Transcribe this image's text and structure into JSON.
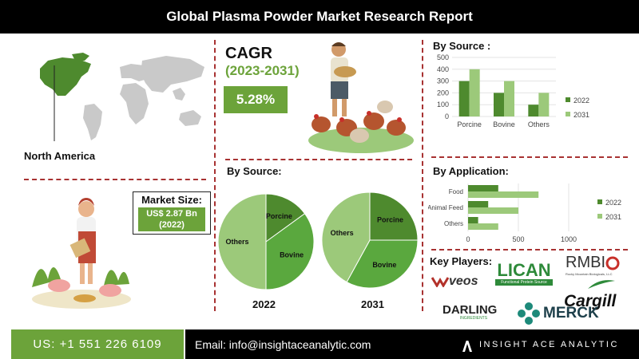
{
  "header": {
    "title": "Global Plasma Powder Market Research Report"
  },
  "region": {
    "label": "North America"
  },
  "cagr": {
    "title": "CAGR",
    "years": "(2023-2031)",
    "value": "5.28%"
  },
  "market_size": {
    "label": "Market Size:",
    "value_line1": "US$ 2.87 Bn",
    "value_line2": "(2022)"
  },
  "source_pies": {
    "heading": "By Source:",
    "year1": "2022",
    "year2": "2031"
  },
  "source_bar": {
    "heading": "By Source :"
  },
  "application_bar": {
    "heading": "By Application:"
  },
  "players": {
    "heading": "Key Players:",
    "veos": "veos",
    "lican": "LICAN",
    "lican_sub": "Functional Protein Source",
    "rmbio": "RMBI",
    "rmbio_sub": "Rocky Mountain Biologicals, LLC",
    "cargill": "Cargill",
    "darling": "DARLING",
    "darling_sub": "INGREDIENTS",
    "merck": "MERCK"
  },
  "footer": {
    "phone": "US: +1 551 226 6109",
    "email": "Email: info@insightaceanalytic.com",
    "brand": "INSIGHT ACE ANALYTIC"
  },
  "colors": {
    "accent_green": "#6ca33a",
    "dark_green": "#4e8a2e",
    "light_green": "#9cc97a",
    "divider": "#a83232"
  },
  "chart_data": [
    {
      "type": "bar",
      "title": "By Source :",
      "categories": [
        "Porcine",
        "Bovine",
        "Others"
      ],
      "series": [
        {
          "name": "2022",
          "values": [
            300,
            200,
            100
          ]
        },
        {
          "name": "2031",
          "values": [
            400,
            300,
            200
          ]
        }
      ],
      "ylim": [
        0,
        500
      ],
      "yticks": [
        0,
        100,
        200,
        300,
        400,
        500
      ],
      "legend": "right"
    },
    {
      "type": "bar",
      "orientation": "horizontal",
      "title": "By Application:",
      "categories": [
        "Food",
        "Animal Feed",
        "Others"
      ],
      "series": [
        {
          "name": "2022",
          "values": [
            300,
            200,
            100
          ]
        },
        {
          "name": "2031",
          "values": [
            700,
            500,
            300
          ]
        }
      ],
      "xlim": [
        0,
        1000
      ],
      "xticks": [
        0,
        500,
        1000
      ],
      "legend": "right"
    },
    {
      "type": "pie",
      "title": "2022",
      "labels": [
        "Porcine",
        "Bovine",
        "Others"
      ],
      "values": [
        15,
        35,
        50
      ]
    },
    {
      "type": "pie",
      "title": "2031",
      "labels": [
        "Porcine",
        "Bovine",
        "Others"
      ],
      "values": [
        25,
        33,
        42
      ]
    }
  ]
}
